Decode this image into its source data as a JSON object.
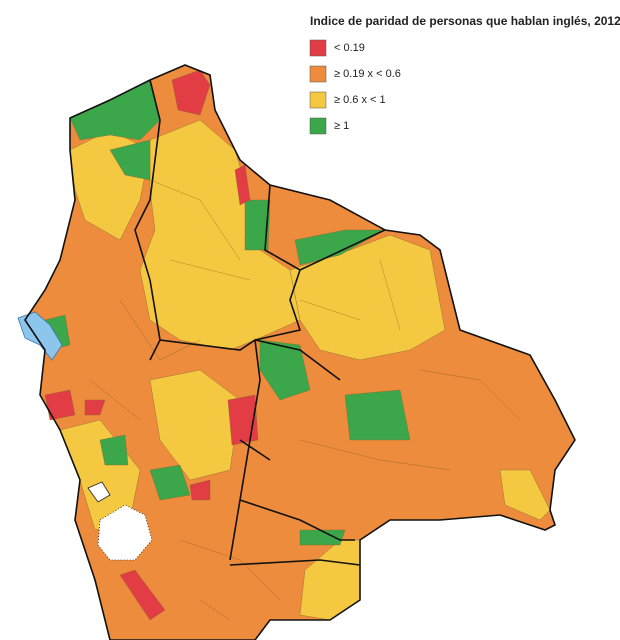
{
  "title": "Indice de paridad de personas que hablan inglés, 2012",
  "legend": [
    {
      "label": "< 0.19",
      "color": "#e23c44"
    },
    {
      "label": "≥ 0.19 x < 0.6",
      "color": "#ec8c3c"
    },
    {
      "label": "≥ 0.6 x < 1",
      "color": "#f5c842"
    },
    {
      "label": "≥ 1",
      "color": "#3ba64a"
    }
  ]
}
